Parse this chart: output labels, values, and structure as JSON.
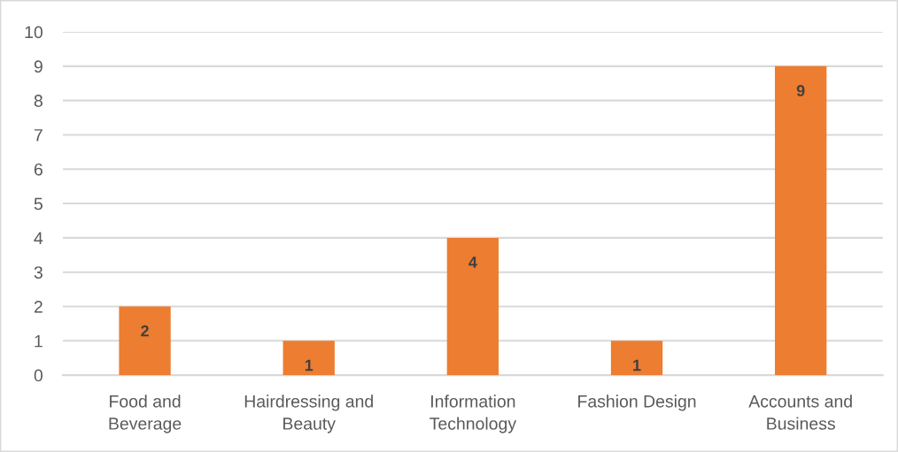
{
  "chart_data": {
    "type": "bar",
    "categories": [
      "Food and\nBeverage",
      "Hairdressing and\nBeauty",
      "Information\nTechnology",
      "Fashion Design",
      "Accounts and\nBusiness"
    ],
    "values": [
      2,
      1,
      4,
      1,
      9
    ],
    "color": "#ed7d31",
    "ylim": [
      0,
      10
    ],
    "yticks": [
      0,
      1,
      2,
      3,
      4,
      5,
      6,
      7,
      8,
      9,
      10
    ],
    "grid": "y",
    "data_labels": true,
    "legend": false
  }
}
